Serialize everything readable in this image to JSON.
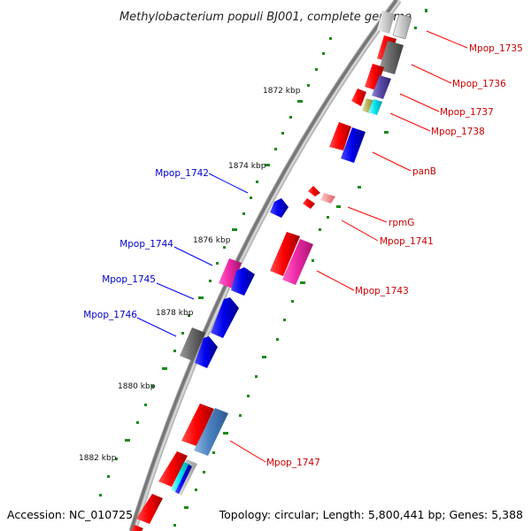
{
  "title": "Methylobacterium populi BJ001, complete genome",
  "footer": {
    "accession": "Accession: NC_010725",
    "topology": "Topology: circular; Length: 5,800,441 bp; Genes: 5,388"
  },
  "colors": {
    "forward_strand_label": "#cc0000",
    "reverse_strand_label": "#0000cc",
    "backbone": "#888888",
    "tick": "#1a8a1a"
  },
  "scale_labels": [
    "1872 kbp",
    "1874 kbp",
    "1876 kbp",
    "1878 kbp",
    "1880 kbp",
    "1882 kbp"
  ],
  "gene_labels": {
    "right": [
      "Mpop_1735",
      "Mpop_1736",
      "Mpop_1737",
      "Mpop_1738",
      "panB",
      "rpmG",
      "Mpop_1741",
      "Mpop_1743",
      "Mpop_1747"
    ],
    "left": [
      "Mpop_1742",
      "Mpop_1744",
      "Mpop_1745",
      "Mpop_1746"
    ]
  }
}
